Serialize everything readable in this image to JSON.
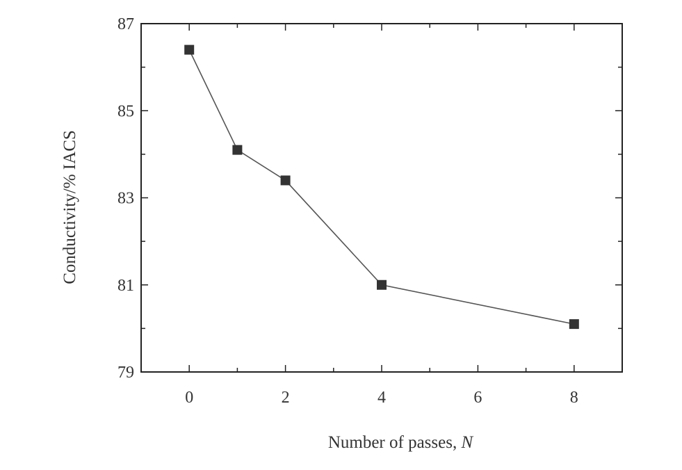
{
  "chart_data": {
    "type": "line",
    "title": "",
    "xlabel": "Number of passes, ",
    "xlabel_var": "N",
    "ylabel": "Conductivity/% IACS",
    "xlim": [
      -1,
      9
    ],
    "ylim": [
      79,
      87
    ],
    "xticks": [
      0,
      2,
      4,
      6,
      8
    ],
    "yticks": [
      79,
      81,
      83,
      85,
      87
    ],
    "x_minor_step": 1,
    "y_minor_step": 1,
    "grid": false,
    "marker": "square",
    "series": [
      {
        "x": [
          0,
          1,
          2,
          4,
          8
        ],
        "y": [
          86.4,
          84.1,
          83.4,
          81.0,
          80.1
        ]
      }
    ],
    "colors": {
      "line": "#555555",
      "marker": "#333333",
      "axes": "#222222"
    }
  }
}
